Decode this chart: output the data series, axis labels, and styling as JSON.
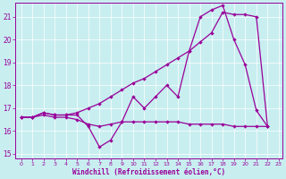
{
  "bg_color": "#c8eef0",
  "line_color": "#990099",
  "xlabel": "Windchill (Refroidissement éolien,°C)",
  "xlim": [
    -0.5,
    23.3
  ],
  "ylim": [
    14.8,
    21.6
  ],
  "yticks": [
    15,
    16,
    17,
    18,
    19,
    20,
    21
  ],
  "xticks": [
    0,
    1,
    2,
    3,
    4,
    5,
    6,
    7,
    8,
    9,
    10,
    11,
    12,
    13,
    14,
    15,
    16,
    17,
    18,
    19,
    20,
    21,
    22,
    23
  ],
  "line1_y": [
    16.6,
    16.6,
    16.8,
    16.7,
    16.7,
    16.7,
    16.2,
    15.3,
    15.6,
    16.4,
    17.5,
    17.0,
    17.5,
    18.0,
    17.5,
    19.5,
    21.0,
    21.3,
    21.5,
    20.0,
    18.9,
    16.9,
    16.2
  ],
  "line2_y": [
    16.6,
    16.6,
    16.7,
    16.6,
    16.6,
    16.5,
    16.3,
    16.2,
    16.3,
    16.4,
    16.4,
    16.4,
    16.4,
    16.4,
    16.4,
    16.3,
    16.3,
    16.3,
    16.3,
    16.2,
    16.2,
    16.2,
    16.2
  ],
  "line3_y": [
    16.6,
    16.6,
    16.8,
    16.7,
    16.7,
    16.8,
    17.0,
    17.2,
    17.5,
    17.8,
    18.1,
    18.3,
    18.6,
    18.9,
    19.2,
    19.5,
    19.9,
    20.3,
    21.2,
    21.1,
    21.1,
    21.0,
    16.2
  ],
  "figsize": [
    3.2,
    2.0
  ],
  "dpi": 100
}
